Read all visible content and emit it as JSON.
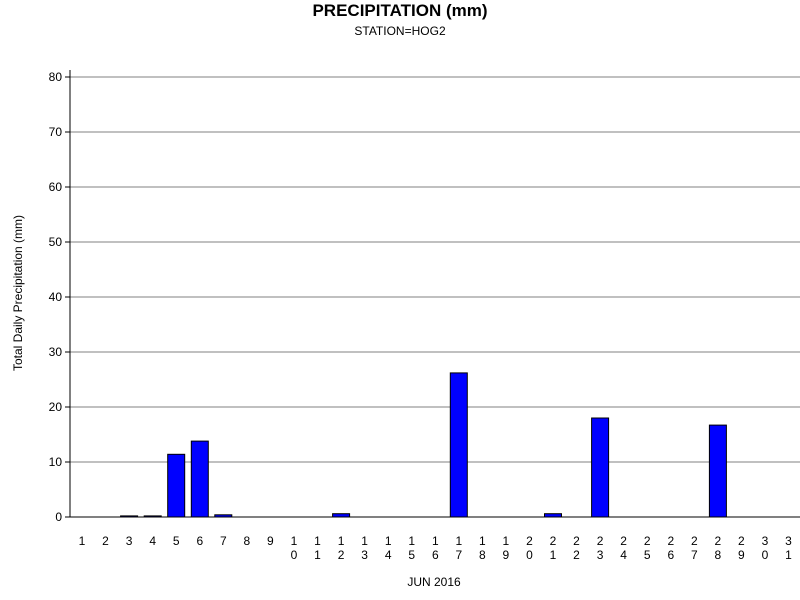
{
  "chart_data": {
    "type": "bar",
    "title": "PRECIPITATION (mm)",
    "subtitle": "STATION=HOG2",
    "xlabel": "JUN 2016",
    "ylabel": "Total Daily Precipitation (mm)",
    "ylim": [
      0,
      80
    ],
    "yticks": [
      0,
      10,
      20,
      30,
      40,
      50,
      60,
      70,
      80
    ],
    "grid": true,
    "categories": [
      "1",
      "2",
      "3",
      "4",
      "5",
      "6",
      "7",
      "8",
      "9",
      "10",
      "11",
      "12",
      "13",
      "14",
      "15",
      "16",
      "17",
      "18",
      "19",
      "20",
      "21",
      "22",
      "23",
      "24",
      "25",
      "26",
      "27",
      "28",
      "29",
      "30",
      "31"
    ],
    "values": [
      0,
      0,
      0.2,
      0.2,
      11.4,
      13.8,
      0.4,
      0,
      0,
      0,
      0,
      0.6,
      0,
      0,
      0,
      0,
      26.2,
      0,
      0,
      0,
      0.6,
      0,
      18.0,
      0,
      0,
      0,
      0,
      16.7,
      0,
      0,
      0
    ],
    "bar_color": "#0000ff"
  }
}
